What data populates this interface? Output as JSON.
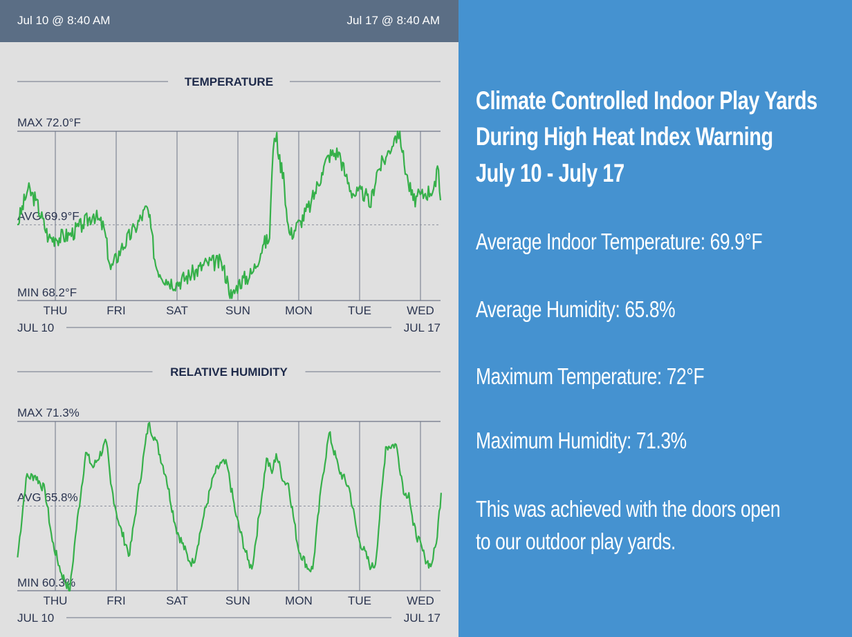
{
  "header": {
    "start": "Jul 10 @ 8:40 AM",
    "end": "Jul 17 @ 8:40 AM"
  },
  "colors": {
    "line": "#36b04a",
    "grid": "#6d7386",
    "panel": "#4592d0",
    "header": "#5b6e85"
  },
  "panel": {
    "title_lines": [
      "Climate Controlled Indoor Play Yards",
      "During High Heat Index Warning",
      "July 10 - July 17"
    ],
    "stats": [
      "Average Indoor Temperature: 69.9°F",
      "Average Humidity: 65.8%",
      "Maximum Temperature: 72°F",
      "Maximum Humidity: 71.3%"
    ],
    "note_lines": [
      "This was achieved with the doors open",
      "to our outdoor play yards."
    ]
  },
  "chart_data": [
    {
      "type": "line",
      "title": "TEMPERATURE",
      "max_label": "MAX 72.0°F",
      "avg_label": "AVG 69.9°F",
      "min_label": "MIN 68.2°F",
      "ylim": [
        68.2,
        72.0
      ],
      "avg": 69.9,
      "xlim": [
        -0.625,
        6.33
      ],
      "xlabel_unit": "days from Thu",
      "day_labels": [
        "THU",
        "FRI",
        "SAT",
        "SUN",
        "MON",
        "TUE",
        "WED"
      ],
      "start_label": "JUL 10",
      "end_label": "JUL 17",
      "x": [
        -0.625,
        -0.45,
        -0.32,
        -0.11,
        0,
        0.23,
        0.45,
        0.63,
        0.8,
        0.91,
        1.08,
        1.31,
        1.51,
        1.57,
        1.65,
        1.82,
        1.99,
        2.27,
        2.5,
        2.73,
        2.84,
        2.9,
        3.01,
        3.24,
        3.41,
        3.52,
        3.56,
        3.6,
        3.64,
        3.67,
        3.75,
        3.81,
        3.86,
        4.03,
        4.2,
        4.38,
        4.49,
        4.66,
        4.77,
        4.89,
        5.09,
        5.17,
        5.28,
        5.45,
        5.57,
        5.66,
        5.7,
        5.8,
        5.88,
        6.08,
        6.25,
        6.28,
        6.33
      ],
      "y": [
        69.9,
        70.7,
        70.45,
        69.6,
        69.6,
        69.67,
        69.9,
        70.14,
        69.83,
        68.9,
        69.36,
        69.83,
        70.29,
        69.83,
        68.98,
        68.67,
        68.59,
        68.82,
        69.05,
        69.05,
        68.59,
        68.25,
        68.59,
        68.82,
        69.44,
        69.6,
        71.07,
        71.84,
        71.97,
        71.38,
        71.07,
        69.98,
        69.67,
        69.98,
        70.37,
        71.07,
        71.46,
        71.53,
        70.99,
        70.6,
        70.6,
        70.29,
        71.07,
        71.46,
        71.84,
        72.0,
        71.53,
        70.84,
        70.45,
        70.6,
        70.76,
        71.22,
        70.45
      ]
    },
    {
      "type": "line",
      "title": "RELATIVE HUMIDITY",
      "max_label": "MAX 71.3%",
      "avg_label": "AVG 65.8%",
      "min_label": "MIN 60.3%",
      "ylim": [
        60.3,
        71.3
      ],
      "avg": 65.8,
      "xlim": [
        -0.625,
        6.33
      ],
      "xlabel_unit": "days from Thu",
      "day_labels": [
        "THU",
        "FRI",
        "SAT",
        "SUN",
        "MON",
        "TUE",
        "WED"
      ],
      "start_label": "JUL 10",
      "end_label": "JUL 17",
      "x": [
        -0.62,
        -0.48,
        -0.33,
        -0.17,
        -0.05,
        0.1,
        0.24,
        0.33,
        0.5,
        0.62,
        0.84,
        0.91,
        1.05,
        1.22,
        1.34,
        1.53,
        1.65,
        1.82,
        1.98,
        2.2,
        2.27,
        2.44,
        2.61,
        2.73,
        2.82,
        2.97,
        3.16,
        3.23,
        3.4,
        3.47,
        3.56,
        3.63,
        3.75,
        3.83,
        3.99,
        4.16,
        4.23,
        4.38,
        4.5,
        4.66,
        4.83,
        4.97,
        5.19,
        5.26,
        5.43,
        5.6,
        5.74,
        5.81,
        5.88,
        6.07,
        6.17,
        6.26,
        6.34
      ],
      "y": [
        62.47,
        67.63,
        67.78,
        66.81,
        63.52,
        61.42,
        60.3,
        63.82,
        69.28,
        68.3,
        69.95,
        67.26,
        64.56,
        62.62,
        66.06,
        71.15,
        70.1,
        67.71,
        64.42,
        62.24,
        62.1,
        65.16,
        67.86,
        68.61,
        68.46,
        65.16,
        62.32,
        61.72,
        66.66,
        68.91,
        67.93,
        69.2,
        67.41,
        67.26,
        63.07,
        61.72,
        61.72,
        67.41,
        70.55,
        68.16,
        66.96,
        63.82,
        61.8,
        62.02,
        69.65,
        69.8,
        66.51,
        66.66,
        64.56,
        62.47,
        61.87,
        63.37,
        66.66
      ]
    }
  ]
}
